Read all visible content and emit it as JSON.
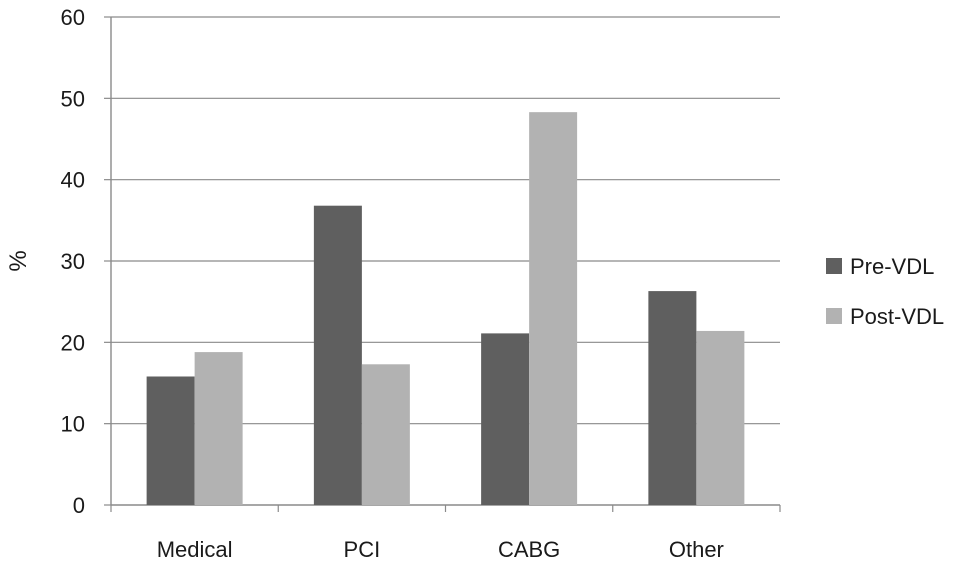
{
  "chart_data": {
    "type": "bar",
    "categories": [
      "Medical",
      "PCI",
      "CABG",
      "Other"
    ],
    "series": [
      {
        "name": "Pre-VDL",
        "values": [
          15.8,
          36.8,
          21.1,
          26.3
        ],
        "color": "#5f5f5f"
      },
      {
        "name": "Post-VDL",
        "values": [
          18.8,
          17.3,
          48.3,
          21.4
        ],
        "color": "#b2b2b2"
      }
    ],
    "title": "",
    "xlabel": "",
    "ylabel": "%",
    "ylim": [
      0,
      60
    ],
    "yticks": [
      0,
      10,
      20,
      30,
      40,
      50,
      60
    ],
    "grid": true,
    "legend_position": "right"
  }
}
